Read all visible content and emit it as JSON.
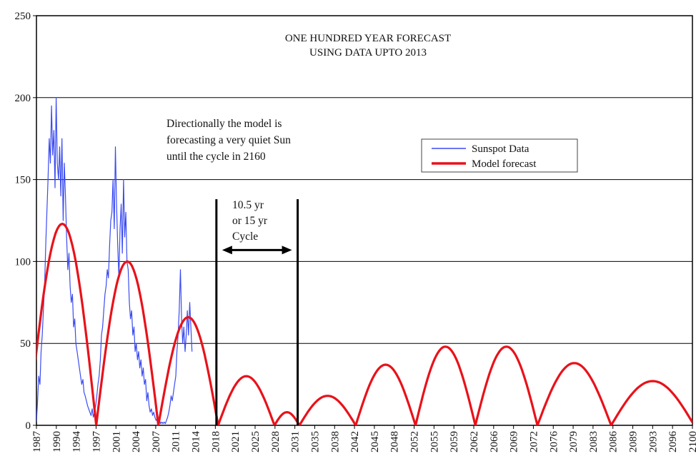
{
  "chart_data": {
    "type": "line",
    "title_lines": [
      "ONE HUNDRED YEAR FORECAST",
      "USING DATA UPTO 2013"
    ],
    "xlabel": "",
    "ylabel": "",
    "xlim": [
      1987,
      2100
    ],
    "ylim": [
      0,
      250
    ],
    "yticks": [
      0,
      50,
      100,
      150,
      200,
      250
    ],
    "xticks": [
      "1987",
      "1990",
      "1994",
      "1997",
      "2001",
      "2004",
      "2007",
      "2011",
      "2014",
      "2018",
      "2021",
      "2025",
      "2028",
      "2031",
      "2035",
      "2038",
      "2042",
      "2045",
      "2048",
      "2052",
      "2055",
      "2059",
      "2062",
      "2066",
      "2069",
      "2072",
      "2076",
      "2079",
      "2083",
      "2086",
      "2089",
      "2093",
      "2096",
      "2100"
    ],
    "grid": "horizontal",
    "legend_position": "right",
    "legend": [
      {
        "name": "Sunspot Data",
        "color": "#3b4cf0"
      },
      {
        "name": "Model forecast",
        "color": "#e8121a"
      }
    ],
    "annotations": [
      {
        "lines": [
          "Directionally the model is",
          "forecasting a very quiet Sun",
          "until the cycle in 2160"
        ]
      },
      {
        "lines": [
          "10.5 yr",
          "or 15 yr",
          "Cycle"
        ]
      }
    ],
    "vlines": [
      2018,
      2032
    ],
    "model_forecast": [
      {
        "start": 1985.6,
        "end": 1997.3,
        "peak": 123
      },
      {
        "start": 1997.3,
        "end": 2008.0,
        "peak": 100
      },
      {
        "start": 2008.0,
        "end": 2018.3,
        "peak": 66
      },
      {
        "start": 2018.3,
        "end": 2028.0,
        "peak": 30
      },
      {
        "start": 2028.0,
        "end": 2032.3,
        "peak": 8
      },
      {
        "start": 2032.3,
        "end": 2042.0,
        "peak": 18
      },
      {
        "start": 2042.0,
        "end": 2052.3,
        "peak": 37
      },
      {
        "start": 2052.3,
        "end": 2062.6,
        "peak": 48
      },
      {
        "start": 2062.6,
        "end": 2073.3,
        "peak": 48
      },
      {
        "start": 2073.3,
        "end": 2086.0,
        "peak": 38
      },
      {
        "start": 2086.0,
        "end": 2100.3,
        "peak": 27
      }
    ],
    "sunspot_data": [
      [
        1987.0,
        2
      ],
      [
        1987.2,
        15
      ],
      [
        1987.4,
        30
      ],
      [
        1987.6,
        25
      ],
      [
        1987.8,
        45
      ],
      [
        1988.0,
        55
      ],
      [
        1988.2,
        70
      ],
      [
        1988.4,
        85
      ],
      [
        1988.6,
        110
      ],
      [
        1988.8,
        130
      ],
      [
        1989.0,
        150
      ],
      [
        1989.2,
        175
      ],
      [
        1989.4,
        160
      ],
      [
        1989.6,
        195
      ],
      [
        1989.8,
        165
      ],
      [
        1990.0,
        180
      ],
      [
        1990.2,
        145
      ],
      [
        1990.4,
        200
      ],
      [
        1990.6,
        160
      ],
      [
        1990.8,
        150
      ],
      [
        1991.0,
        170
      ],
      [
        1991.2,
        140
      ],
      [
        1991.4,
        175
      ],
      [
        1991.6,
        125
      ],
      [
        1991.8,
        160
      ],
      [
        1992.0,
        140
      ],
      [
        1992.2,
        115
      ],
      [
        1992.4,
        95
      ],
      [
        1992.6,
        105
      ],
      [
        1992.8,
        85
      ],
      [
        1993.0,
        75
      ],
      [
        1993.2,
        80
      ],
      [
        1993.4,
        60
      ],
      [
        1993.6,
        65
      ],
      [
        1993.8,
        50
      ],
      [
        1994.0,
        45
      ],
      [
        1994.2,
        40
      ],
      [
        1994.4,
        35
      ],
      [
        1994.6,
        30
      ],
      [
        1994.8,
        25
      ],
      [
        1995.0,
        28
      ],
      [
        1995.2,
        20
      ],
      [
        1995.4,
        18
      ],
      [
        1995.6,
        15
      ],
      [
        1995.8,
        12
      ],
      [
        1996.0,
        10
      ],
      [
        1996.2,
        8
      ],
      [
        1996.4,
        6
      ],
      [
        1996.6,
        10
      ],
      [
        1996.8,
        5
      ],
      [
        1997.0,
        8
      ],
      [
        1997.2,
        12
      ],
      [
        1997.4,
        18
      ],
      [
        1997.6,
        25
      ],
      [
        1997.8,
        30
      ],
      [
        1998.0,
        40
      ],
      [
        1998.2,
        55
      ],
      [
        1998.4,
        60
      ],
      [
        1998.6,
        70
      ],
      [
        1998.8,
        80
      ],
      [
        1999.0,
        85
      ],
      [
        1999.2,
        95
      ],
      [
        1999.4,
        90
      ],
      [
        1999.6,
        110
      ],
      [
        1999.8,
        125
      ],
      [
        2000.0,
        130
      ],
      [
        2000.2,
        150
      ],
      [
        2000.4,
        120
      ],
      [
        2000.6,
        170
      ],
      [
        2000.8,
        135
      ],
      [
        2001.0,
        110
      ],
      [
        2001.2,
        90
      ],
      [
        2001.4,
        120
      ],
      [
        2001.6,
        135
      ],
      [
        2001.8,
        105
      ],
      [
        2002.0,
        150
      ],
      [
        2002.2,
        115
      ],
      [
        2002.4,
        130
      ],
      [
        2002.6,
        100
      ],
      [
        2002.8,
        95
      ],
      [
        2003.0,
        75
      ],
      [
        2003.2,
        65
      ],
      [
        2003.4,
        70
      ],
      [
        2003.6,
        55
      ],
      [
        2003.8,
        60
      ],
      [
        2004.0,
        45
      ],
      [
        2004.2,
        50
      ],
      [
        2004.4,
        40
      ],
      [
        2004.6,
        45
      ],
      [
        2004.8,
        35
      ],
      [
        2005.0,
        40
      ],
      [
        2005.2,
        30
      ],
      [
        2005.4,
        35
      ],
      [
        2005.6,
        25
      ],
      [
        2005.8,
        28
      ],
      [
        2006.0,
        15
      ],
      [
        2006.2,
        20
      ],
      [
        2006.4,
        12
      ],
      [
        2006.6,
        8
      ],
      [
        2006.8,
        10
      ],
      [
        2007.0,
        6
      ],
      [
        2007.2,
        8
      ],
      [
        2007.4,
        5
      ],
      [
        2007.6,
        3
      ],
      [
        2007.8,
        4
      ],
      [
        2008.0,
        2
      ],
      [
        2008.2,
        3
      ],
      [
        2008.4,
        1
      ],
      [
        2008.6,
        2
      ],
      [
        2008.8,
        1
      ],
      [
        2009.0,
        2
      ],
      [
        2009.2,
        1
      ],
      [
        2009.4,
        3
      ],
      [
        2009.6,
        5
      ],
      [
        2009.8,
        8
      ],
      [
        2010.0,
        12
      ],
      [
        2010.2,
        18
      ],
      [
        2010.4,
        15
      ],
      [
        2010.6,
        20
      ],
      [
        2010.8,
        25
      ],
      [
        2011.0,
        30
      ],
      [
        2011.2,
        45
      ],
      [
        2011.4,
        55
      ],
      [
        2011.6,
        70
      ],
      [
        2011.8,
        95
      ],
      [
        2012.0,
        65
      ],
      [
        2012.2,
        50
      ],
      [
        2012.4,
        60
      ],
      [
        2012.6,
        45
      ],
      [
        2012.8,
        55
      ],
      [
        2013.0,
        70
      ],
      [
        2013.2,
        55
      ],
      [
        2013.4,
        75
      ],
      [
        2013.6,
        60
      ],
      [
        2013.8,
        45
      ]
    ]
  }
}
